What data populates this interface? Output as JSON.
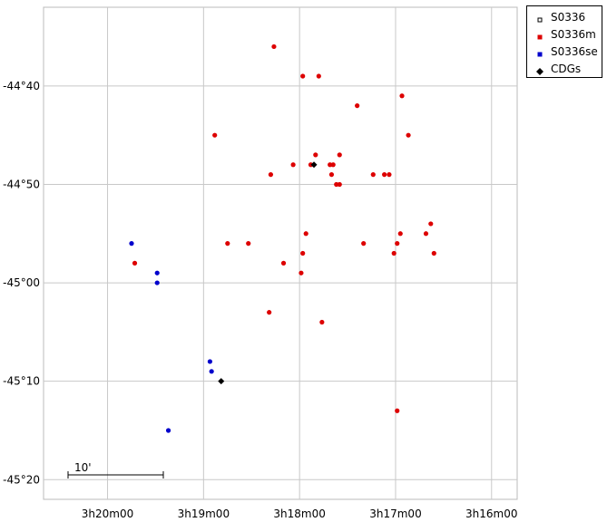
{
  "chart_data": {
    "type": "scatter",
    "title": "",
    "xlabel": "",
    "ylabel": "",
    "grid": true,
    "legend_placement": "top-right, outside plot",
    "xlim": [
      "3h20m40",
      "3h15m44"
    ],
    "ylim": [
      "-45°22",
      "-44°32"
    ],
    "x_ticks": [
      "3h20m00",
      "3h19m00",
      "3h18m00",
      "3h17m00",
      "3h16m00"
    ],
    "y_ticks": [
      "-44°40",
      "-44°50",
      "-45°00",
      "-45°10",
      "-45°20"
    ],
    "scale_bar": {
      "label": "10'"
    },
    "series": [
      {
        "name": "S0336",
        "marker": "open-square",
        "color": "#000000",
        "points": []
      },
      {
        "name": "S0336m",
        "marker": "circle",
        "color": "#dd0000",
        "points": [
          [
            "3h18m16",
            "-44°36"
          ],
          [
            "3h17m58",
            "-44°39"
          ],
          [
            "3h17m48",
            "-44°39"
          ],
          [
            "3h17m24",
            "-44°42"
          ],
          [
            "3h16m56",
            "-44°41"
          ],
          [
            "3h16m52",
            "-44°45"
          ],
          [
            "3h18m53",
            "-44°45"
          ],
          [
            "3h17m35",
            "-44°47"
          ],
          [
            "3h17m50",
            "-44°47"
          ],
          [
            "3h17m41",
            "-44°48"
          ],
          [
            "3h17m53",
            "-44°48"
          ],
          [
            "3h17m39",
            "-44°48"
          ],
          [
            "3h18m04",
            "-44°48"
          ],
          [
            "3h17m40",
            "-44°49"
          ],
          [
            "3h17m14",
            "-44°49"
          ],
          [
            "3h17m07",
            "-44°49"
          ],
          [
            "3h17m04",
            "-44°49"
          ],
          [
            "3h18m18",
            "-44°49"
          ],
          [
            "3h17m37",
            "-44°50"
          ],
          [
            "3h17m35",
            "-44°50"
          ],
          [
            "3h16m38",
            "-44°54"
          ],
          [
            "3h16m41",
            "-44°55"
          ],
          [
            "3h17m56",
            "-44°55"
          ],
          [
            "3h16m57",
            "-44°55"
          ],
          [
            "3h16m59",
            "-44°56"
          ],
          [
            "3h17m20",
            "-44°56"
          ],
          [
            "3h18m32",
            "-44°56"
          ],
          [
            "3h18m45",
            "-44°56"
          ],
          [
            "3h17m01",
            "-44°57"
          ],
          [
            "3h17m58",
            "-44°57"
          ],
          [
            "3h18m10",
            "-44°58"
          ],
          [
            "3h19m43",
            "-44°58"
          ],
          [
            "3h16m36",
            "-44°57"
          ],
          [
            "3h17m59",
            "-44°59"
          ],
          [
            "3h18m19",
            "-45°03"
          ],
          [
            "3h17m46",
            "-45°04"
          ],
          [
            "3h16m59",
            "-45°13"
          ]
        ]
      },
      {
        "name": "S0336se",
        "marker": "circle",
        "color": "#0000cc",
        "points": [
          [
            "3h19m45",
            "-44°56"
          ],
          [
            "3h19m29",
            "-44°59"
          ],
          [
            "3h19m29",
            "-45°00"
          ],
          [
            "3h18m56",
            "-45°08"
          ],
          [
            "3h18m55",
            "-45°09"
          ],
          [
            "3h19m22",
            "-45°15"
          ]
        ]
      },
      {
        "name": "CDGs",
        "marker": "diamond",
        "color": "#000000",
        "points": [
          [
            "3h17m51",
            "-44°48"
          ],
          [
            "3h18m49",
            "-45°10"
          ]
        ]
      }
    ]
  }
}
